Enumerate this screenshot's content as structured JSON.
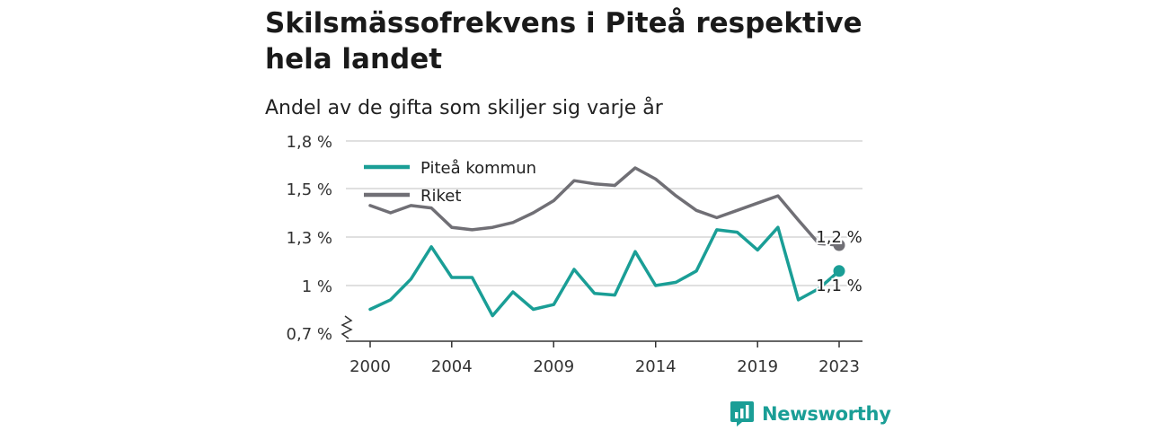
{
  "title": "Skilsmässofrekvens i Piteå respektive hela landet",
  "subtitle": "Andel av de gifta som skiljer sig varje år",
  "brand": "Newsworthy",
  "colors": {
    "pitea": "#1a9e96",
    "riket": "#706f75",
    "grid": "#d6d6d6",
    "axis": "#333333",
    "brand": "#1a9e96"
  },
  "chart_data": {
    "type": "line",
    "x": [
      2000,
      2001,
      2002,
      2003,
      2004,
      2005,
      2006,
      2007,
      2008,
      2009,
      2010,
      2011,
      2012,
      2013,
      2014,
      2015,
      2016,
      2017,
      2018,
      2019,
      2020,
      2021,
      2022,
      2023
    ],
    "x_ticks": [
      2000,
      2004,
      2009,
      2014,
      2019,
      2023
    ],
    "x_tick_labels": [
      "2000",
      "2004",
      "2009",
      "2014",
      "2019",
      "2023"
    ],
    "ylim": [
      0.7,
      1.8
    ],
    "y_ticks": [
      0.7,
      1.0,
      1.3,
      1.5,
      1.8
    ],
    "y_tick_labels": [
      "0,7 %",
      "1 %",
      "1,3 %",
      "1,5 %",
      "1,8 %"
    ],
    "legend_position": "top-left",
    "grid": true,
    "series": [
      {
        "name": "Piteå kommun",
        "color": "#1a9e96",
        "values": [
          0.85,
          0.91,
          1.04,
          1.24,
          1.05,
          1.05,
          0.81,
          0.96,
          0.85,
          0.88,
          1.1,
          0.95,
          0.94,
          1.21,
          1.0,
          1.02,
          1.09,
          1.33,
          1.32,
          1.22,
          1.34,
          0.91,
          0.98,
          1.09
        ],
        "end_label": "1,1 %"
      },
      {
        "name": "Riket",
        "color": "#706f75",
        "values": [
          1.43,
          1.4,
          1.43,
          1.42,
          1.34,
          1.33,
          1.34,
          1.36,
          1.4,
          1.45,
          1.55,
          1.53,
          1.52,
          1.63,
          1.56,
          1.47,
          1.41,
          1.38,
          1.41,
          1.44,
          1.47,
          1.37,
          1.26,
          1.25
        ],
        "end_label": "1,2 %"
      }
    ]
  }
}
